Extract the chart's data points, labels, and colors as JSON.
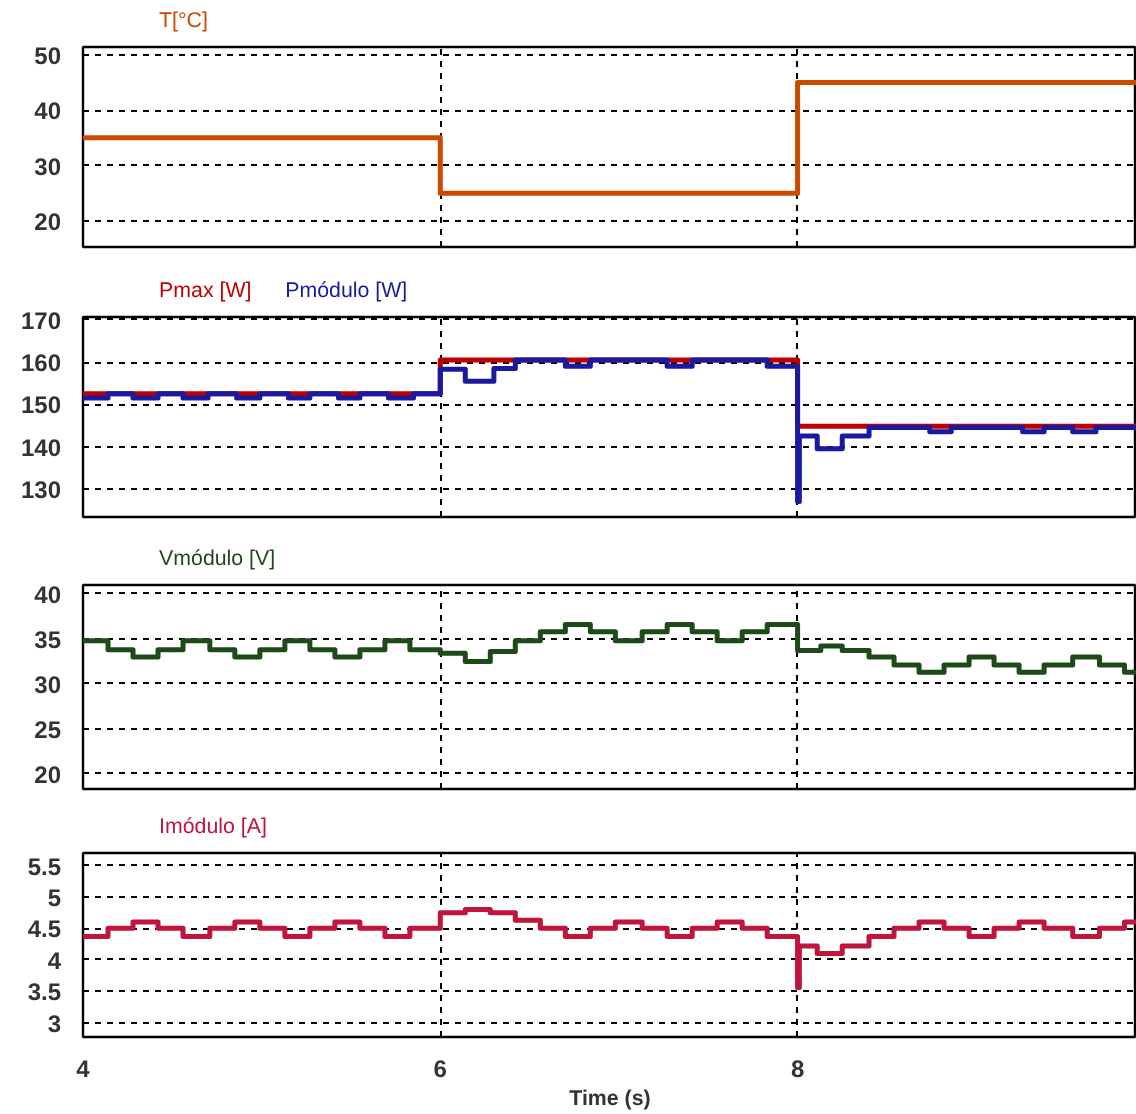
{
  "chart_data": [
    {
      "type": "step",
      "xlim": [
        4,
        9.9
      ],
      "xticks": [
        4,
        6,
        8
      ],
      "ylim": [
        15.3,
        51.4
      ],
      "yticks": [
        20,
        30,
        40,
        50
      ],
      "grid": true,
      "tick_labels": "y",
      "series": [
        {
          "name": "T[°C]",
          "color": "#cc4a00",
          "x": [
            4,
            6,
            8,
            9.9
          ],
          "values": [
            35,
            25,
            45,
            45
          ]
        }
      ]
    },
    {
      "type": "step",
      "xlim": [
        4,
        9.9
      ],
      "xticks": [
        4,
        6,
        8
      ],
      "ylim": [
        123.3,
        170.7
      ],
      "yticks": [
        130,
        140,
        150,
        160,
        170
      ],
      "grid": true,
      "tick_labels": "y",
      "series": [
        {
          "name": "Pmax [W]",
          "color": "#c00000",
          "x": [
            4,
            6,
            8,
            9.9
          ],
          "values": [
            152.5,
            160.5,
            144.8,
            144.8
          ]
        },
        {
          "name": "Pmódulo [W]",
          "color": "#1a1aa0",
          "x": [
            4.0,
            4.14,
            4.28,
            4.42,
            4.56,
            4.7,
            4.86,
            4.99,
            5.15,
            5.27,
            5.43,
            5.55,
            5.71,
            5.85,
            6.0,
            6.14,
            6.3,
            6.42,
            6.7,
            6.84,
            7.27,
            7.41,
            7.83,
            8.0,
            8.01,
            8.11,
            8.25,
            8.4,
            8.74,
            8.86,
            9.26,
            9.38,
            9.54,
            9.67,
            9.9
          ],
          "values": [
            151.5,
            152.5,
            151.5,
            152.5,
            151.5,
            152.5,
            151.5,
            152.5,
            151.5,
            152.5,
            151.5,
            152.5,
            151.5,
            152.5,
            158.3,
            155.5,
            158.5,
            160.5,
            159,
            160.5,
            159,
            160.5,
            159,
            127,
            142.5,
            139.5,
            142.5,
            144.5,
            143.5,
            144.5,
            143.5,
            144.5,
            143.5,
            144.5,
            144.5
          ]
        }
      ]
    },
    {
      "type": "step",
      "xlim": [
        4,
        9.9
      ],
      "xticks": [
        4,
        6,
        8
      ],
      "ylim": [
        18.3,
        41
      ],
      "yticks": [
        20,
        25,
        30,
        35,
        40
      ],
      "grid": true,
      "tick_labels": "y",
      "series": [
        {
          "name": "Vmódulo [V]",
          "color": "#1e4a1a",
          "x": [
            4.0,
            4.14,
            4.28,
            4.42,
            4.56,
            4.71,
            4.85,
            4.99,
            5.13,
            5.27,
            5.41,
            5.55,
            5.69,
            5.83,
            6.0,
            6.14,
            6.28,
            6.42,
            6.56,
            6.7,
            6.84,
            6.98,
            7.13,
            7.27,
            7.41,
            7.55,
            7.69,
            7.83,
            8.0,
            8.13,
            8.25,
            8.4,
            8.54,
            8.68,
            8.82,
            8.96,
            9.1,
            9.24,
            9.38,
            9.54,
            9.69,
            9.83,
            9.9
          ],
          "values": [
            34.8,
            33.8,
            33.0,
            33.8,
            34.8,
            33.8,
            33.0,
            33.8,
            34.8,
            33.8,
            33.0,
            33.8,
            34.8,
            33.8,
            33.4,
            32.5,
            33.6,
            34.8,
            35.8,
            36.6,
            35.8,
            34.8,
            35.8,
            36.6,
            35.8,
            34.8,
            35.8,
            36.6,
            33.7,
            34.2,
            33.7,
            33.0,
            32.1,
            31.3,
            32.1,
            33.0,
            32.1,
            31.3,
            32.1,
            33.0,
            32.1,
            31.3,
            31.3
          ]
        }
      ]
    },
    {
      "type": "step",
      "xlim": [
        4,
        9.9
      ],
      "xticks": [
        4,
        6,
        8
      ],
      "ylim": [
        2.77,
        5.7
      ],
      "yticks": [
        3,
        3.5,
        4,
        4.5,
        5,
        5.5
      ],
      "grid": true,
      "xlabel": "Time (s)",
      "series": [
        {
          "name": "Imódulo [A]",
          "color": "#c0143c",
          "x": [
            4.0,
            4.14,
            4.28,
            4.42,
            4.56,
            4.71,
            4.85,
            4.99,
            5.13,
            5.27,
            5.41,
            5.55,
            5.69,
            5.83,
            6.0,
            6.14,
            6.28,
            6.42,
            6.56,
            6.7,
            6.84,
            6.98,
            7.13,
            7.27,
            7.41,
            7.55,
            7.69,
            7.83,
            8.0,
            8.01,
            8.11,
            8.25,
            8.4,
            8.54,
            8.68,
            8.82,
            8.96,
            9.1,
            9.24,
            9.38,
            9.54,
            9.69,
            9.83,
            9.9
          ],
          "values": [
            4.37,
            4.5,
            4.6,
            4.5,
            4.37,
            4.5,
            4.6,
            4.5,
            4.37,
            4.5,
            4.6,
            4.5,
            4.37,
            4.5,
            4.75,
            4.8,
            4.75,
            4.63,
            4.5,
            4.37,
            4.5,
            4.6,
            4.5,
            4.37,
            4.5,
            4.6,
            4.5,
            4.37,
            3.56,
            4.22,
            4.1,
            4.22,
            4.37,
            4.5,
            4.6,
            4.5,
            4.37,
            4.5,
            4.6,
            4.5,
            4.37,
            4.5,
            4.6,
            4.6
          ]
        }
      ]
    }
  ]
}
